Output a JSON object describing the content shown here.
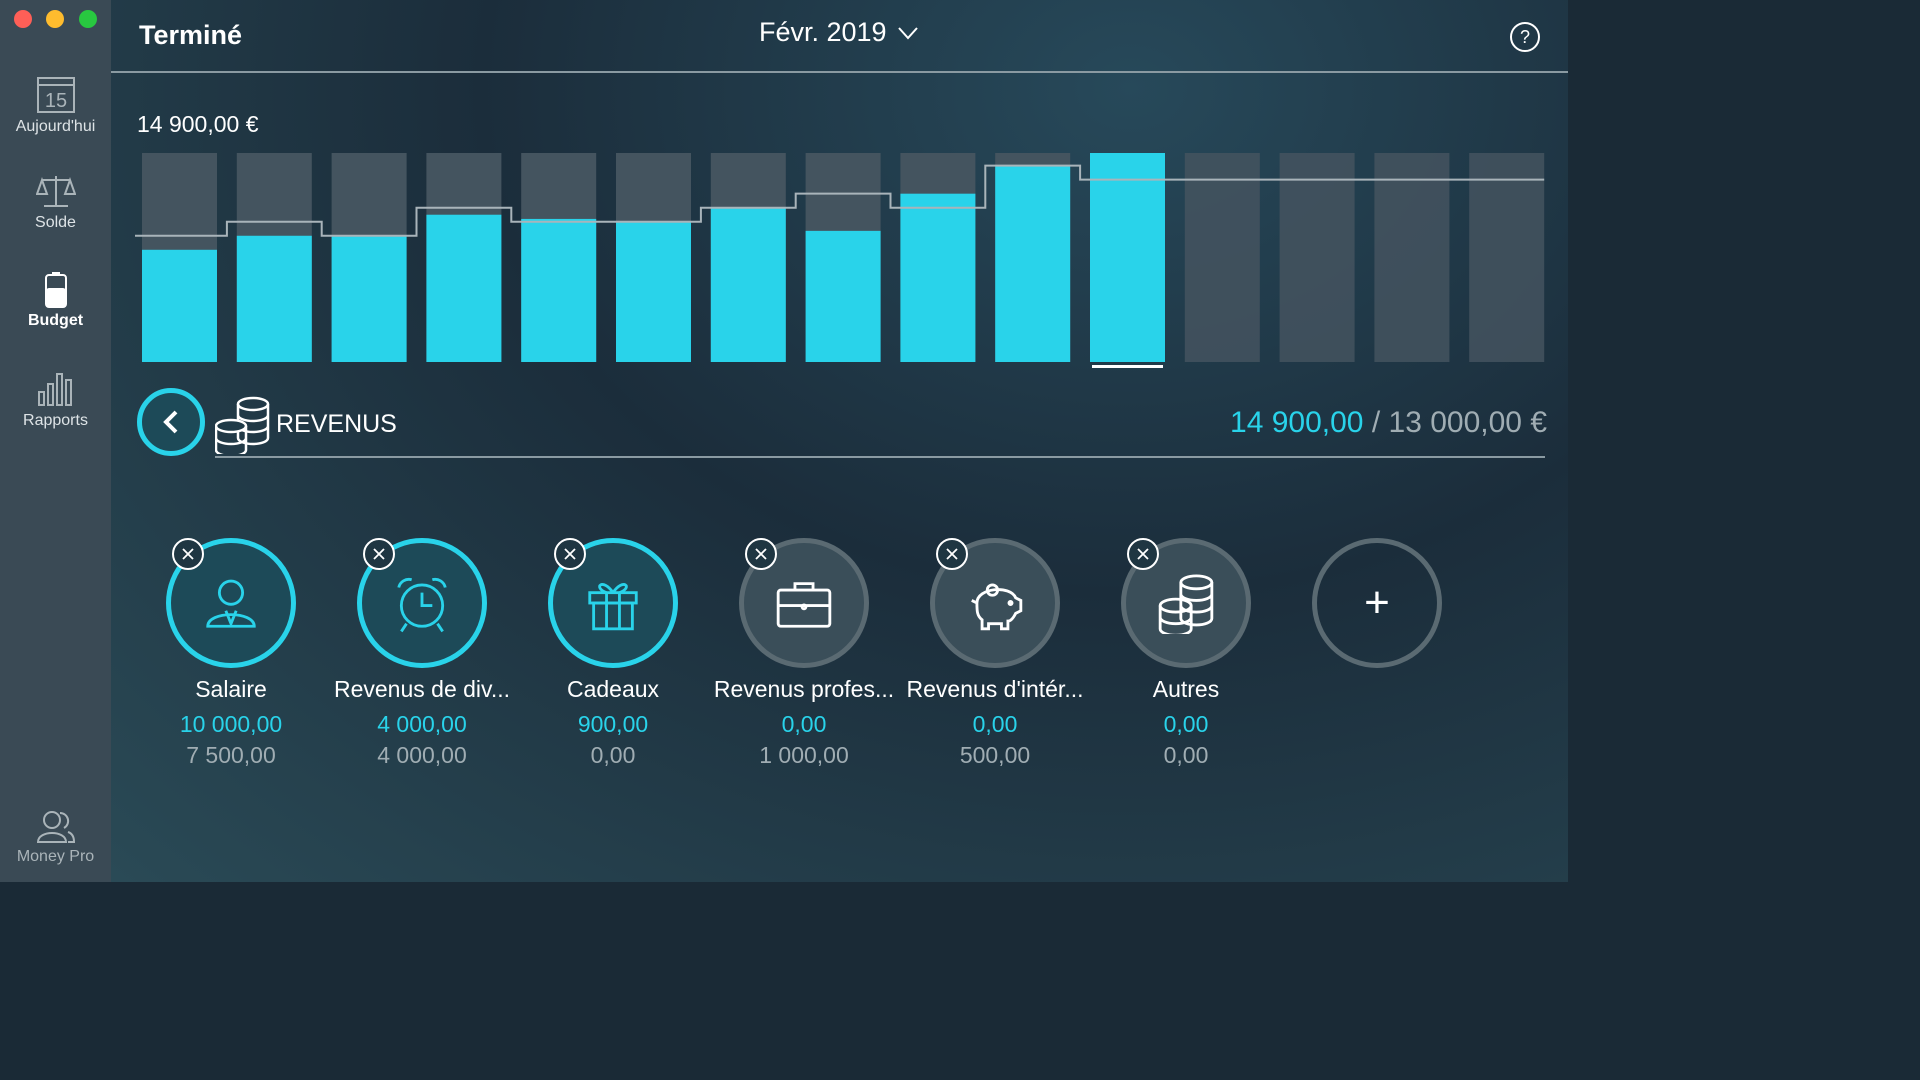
{
  "window": {
    "title": "Terminé",
    "month": "Févr. 2019",
    "help": "?"
  },
  "sidebar": {
    "items": [
      {
        "label": "Aujourd'hui",
        "day": "15"
      },
      {
        "label": "Solde"
      },
      {
        "label": "Budget"
      },
      {
        "label": "Rapports"
      }
    ],
    "footer": "Money Pro"
  },
  "summary": {
    "total": "14 900,00 €"
  },
  "chart_data": {
    "type": "bar",
    "title": "14 900,00 €",
    "ylim": [
      0,
      14900
    ],
    "selected_index": 10,
    "actual": [
      8000,
      9000,
      9000,
      10500,
      10200,
      10000,
      11000,
      9350,
      12000,
      14050,
      14900,
      null,
      null,
      null,
      null
    ],
    "budget": [
      9000,
      10000,
      9000,
      11000,
      10000,
      10000,
      11000,
      12000,
      11000,
      14000,
      13000,
      13000,
      13000,
      13000,
      13000
    ],
    "colors": {
      "actual": "#29d3ea",
      "track": "#44545f",
      "budget_line": "#a9b4ba"
    }
  },
  "section": {
    "label": "REVENUS",
    "actual": "14 900,00",
    "separator": " / ",
    "budget": "13 000,00 €"
  },
  "categories": [
    {
      "name": "Salaire",
      "icon": "person-icon",
      "actual": "10 000,00",
      "budget": "7 500,00",
      "active": true
    },
    {
      "name": "Revenus de div...",
      "icon": "alarm-clock-icon",
      "actual": "4 000,00",
      "budget": "4 000,00",
      "active": true
    },
    {
      "name": "Cadeaux",
      "icon": "gift-icon",
      "actual": "900,00",
      "budget": "0,00",
      "active": true
    },
    {
      "name": "Revenus profes...",
      "icon": "briefcase-icon",
      "actual": "0,00",
      "budget": "1 000,00",
      "active": false
    },
    {
      "name": "Revenus d'intér...",
      "icon": "piggy-bank-icon",
      "actual": "0,00",
      "budget": "500,00",
      "active": false
    },
    {
      "name": "Autres",
      "icon": "coins-icon",
      "actual": "0,00",
      "budget": "0,00",
      "active": false
    }
  ],
  "add_label": "+"
}
